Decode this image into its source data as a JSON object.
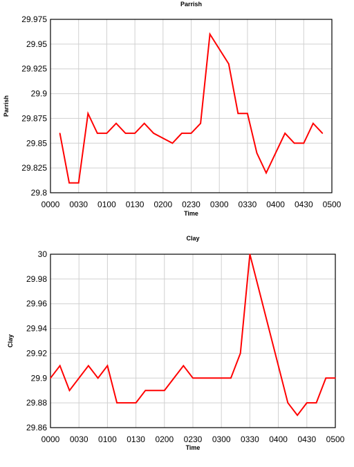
{
  "chart_data": [
    {
      "type": "line",
      "title": "Parrish",
      "xlabel": "Time",
      "ylabel": "Parrish",
      "x_ticks": [
        "0000",
        "0030",
        "0100",
        "0130",
        "0200",
        "0230",
        "0300",
        "0330",
        "0400",
        "0430",
        "0500"
      ],
      "y_ticks": [
        "29.8",
        "29.825",
        "29.85",
        "29.875",
        "29.9",
        "29.925",
        "29.95",
        "29.975"
      ],
      "xlim": [
        0,
        300
      ],
      "ylim": [
        29.8,
        29.975
      ],
      "grid": true,
      "series": [
        {
          "color": "#ff0000",
          "x": [
            10,
            20,
            30,
            40,
            50,
            60,
            70,
            80,
            90,
            100,
            110,
            130,
            140,
            150,
            160,
            170,
            190,
            200,
            210,
            220,
            230,
            240,
            250,
            260,
            270,
            280,
            290
          ],
          "y": [
            29.86,
            29.81,
            29.81,
            29.88,
            29.86,
            29.86,
            29.87,
            29.86,
            29.86,
            29.87,
            29.86,
            29.85,
            29.86,
            29.86,
            29.87,
            29.96,
            29.93,
            29.88,
            29.88,
            29.84,
            29.82,
            29.84,
            29.86,
            29.85,
            29.85,
            29.87,
            29.86
          ]
        }
      ]
    },
    {
      "type": "line",
      "title": "Clay",
      "xlabel": "Time",
      "ylabel": "Clay",
      "x_ticks": [
        "0000",
        "0030",
        "0100",
        "0130",
        "0200",
        "0230",
        "0300",
        "0330",
        "0400",
        "0430",
        "0500"
      ],
      "y_ticks": [
        "29.86",
        "29.88",
        "29.9",
        "29.92",
        "29.94",
        "29.96",
        "29.98",
        "30"
      ],
      "xlim": [
        0,
        300
      ],
      "ylim": [
        29.86,
        30
      ],
      "grid": true,
      "series": [
        {
          "color": "#ff0000",
          "x": [
            0,
            10,
            20,
            40,
            50,
            60,
            70,
            90,
            100,
            120,
            140,
            150,
            190,
            200,
            210,
            250,
            260,
            270,
            280,
            290,
            300
          ],
          "y": [
            29.9,
            29.91,
            29.89,
            29.91,
            29.9,
            29.91,
            29.88,
            29.88,
            29.89,
            29.89,
            29.91,
            29.9,
            29.9,
            29.92,
            30,
            29.88,
            29.87,
            29.88,
            29.88,
            29.9,
            29.9
          ]
        }
      ]
    }
  ]
}
